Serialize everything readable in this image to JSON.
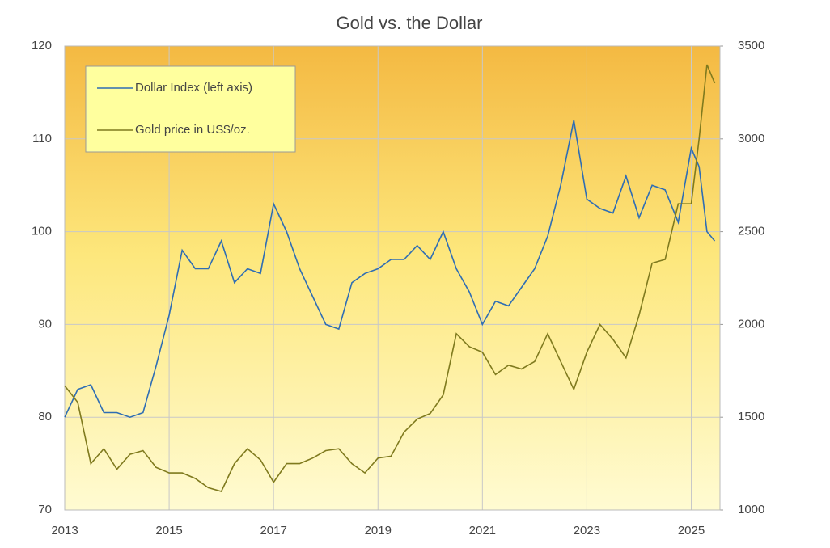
{
  "chart_data": {
    "type": "line",
    "title": "Gold vs. the Dollar",
    "x": [
      2013,
      2013.25,
      2013.5,
      2013.75,
      2014,
      2014.25,
      2014.5,
      2014.75,
      2015,
      2015.25,
      2015.5,
      2015.75,
      2016,
      2016.25,
      2016.5,
      2016.75,
      2017,
      2017.25,
      2017.5,
      2017.75,
      2018,
      2018.25,
      2018.5,
      2018.75,
      2019,
      2019.25,
      2019.5,
      2019.75,
      2020,
      2020.25,
      2020.5,
      2020.75,
      2021,
      2021.25,
      2021.5,
      2021.75,
      2022,
      2022.25,
      2022.5,
      2022.75,
      2023,
      2023.25,
      2023.5,
      2023.75,
      2024,
      2024.25,
      2024.5,
      2024.75,
      2025,
      2025.15,
      2025.3,
      2025.45
    ],
    "series": [
      {
        "name": "Dollar Index (left axis)",
        "color": "#2e6db4",
        "values": [
          80,
          83,
          83.5,
          80.5,
          80.5,
          80,
          80.5,
          85.5,
          91,
          98,
          96,
          96,
          99,
          94.5,
          96,
          95.5,
          103,
          100,
          96,
          93,
          90,
          89.5,
          94.5,
          95.5,
          96,
          97,
          97,
          98.5,
          97,
          100,
          96,
          93.5,
          90,
          92.5,
          92,
          94,
          96,
          99.5,
          105,
          112,
          103.5,
          102.5,
          102,
          106,
          101.5,
          105,
          104.5,
          101,
          109,
          107,
          100,
          99
        ]
      },
      {
        "name": "Gold price in US$/oz.",
        "color": "#7f7a1e",
        "axis": "y2",
        "values": [
          1670,
          1580,
          1250,
          1330,
          1220,
          1300,
          1320,
          1230,
          1200,
          1200,
          1170,
          1120,
          1100,
          1250,
          1330,
          1270,
          1150,
          1250,
          1250,
          1280,
          1320,
          1330,
          1250,
          1200,
          1280,
          1290,
          1420,
          1490,
          1520,
          1620,
          1950,
          1880,
          1850,
          1730,
          1780,
          1760,
          1800,
          1950,
          1800,
          1650,
          1850,
          2000,
          1920,
          1820,
          2050,
          2330,
          2350,
          2650,
          2650,
          3000,
          3400,
          3300
        ]
      }
    ],
    "xlim": [
      2013,
      2025.55
    ],
    "xticks": [
      2013,
      2015,
      2017,
      2019,
      2021,
      2023,
      2025
    ],
    "ylim": [
      70,
      120
    ],
    "yticks": [
      70,
      80,
      90,
      100,
      110,
      120
    ],
    "y2lim": [
      1000,
      3500
    ],
    "y2ticks": [
      1000,
      1500,
      2000,
      2500,
      3000,
      3500
    ],
    "grid": true,
    "legend": "upper-left"
  }
}
